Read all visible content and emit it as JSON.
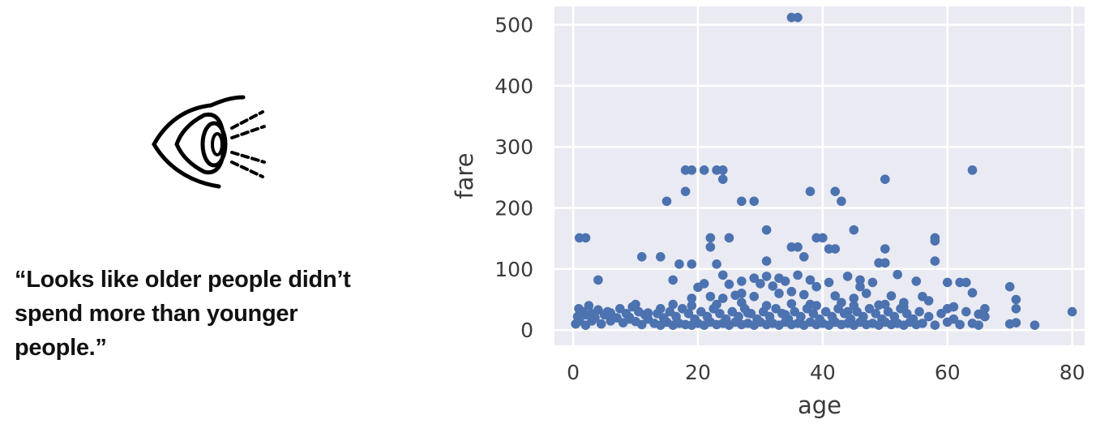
{
  "quote": {
    "lines": [
      "“Looks like older people didn’t",
      "spend more than younger",
      "people.”"
    ]
  },
  "icon": {
    "name": "eye-icon"
  },
  "chart_data": {
    "type": "scatter",
    "xlabel": "age",
    "ylabel": "fare",
    "xlim": [
      -3,
      82
    ],
    "ylim": [
      -25,
      530
    ],
    "xticks": [
      0,
      20,
      40,
      60,
      80
    ],
    "yticks": [
      0,
      100,
      200,
      300,
      400,
      500
    ],
    "grid": true,
    "legend": "none",
    "colors": {
      "marker": "#4c72b0",
      "plot_background": "#eaeaf2",
      "grid": "#ffffff"
    },
    "series": [
      {
        "points": [
          [
            35,
            512
          ],
          [
            36,
            512
          ],
          [
            18,
            262
          ],
          [
            19,
            262
          ],
          [
            21,
            262
          ],
          [
            23,
            262
          ],
          [
            24,
            262
          ],
          [
            64,
            262
          ],
          [
            24,
            247
          ],
          [
            50,
            247
          ],
          [
            18,
            227
          ],
          [
            38,
            227
          ],
          [
            42,
            227
          ],
          [
            15,
            211
          ],
          [
            27,
            211
          ],
          [
            29,
            211
          ],
          [
            43,
            211
          ],
          [
            31,
            164
          ],
          [
            45,
            164
          ],
          [
            1,
            151
          ],
          [
            2,
            151
          ],
          [
            22,
            151
          ],
          [
            25,
            151
          ],
          [
            39,
            151
          ],
          [
            40,
            151
          ],
          [
            58,
            151
          ],
          [
            22,
            136
          ],
          [
            35,
            136
          ],
          [
            36,
            136
          ],
          [
            41,
            133
          ],
          [
            42,
            133
          ],
          [
            50,
            133
          ],
          [
            58,
            146
          ],
          [
            11,
            120
          ],
          [
            14,
            120
          ],
          [
            37,
            120
          ],
          [
            31,
            113
          ],
          [
            49,
            110
          ],
          [
            50,
            110
          ],
          [
            58,
            113
          ],
          [
            17,
            108
          ],
          [
            19,
            108
          ],
          [
            23,
            108
          ],
          [
            52,
            91
          ],
          [
            60,
            78
          ],
          [
            62,
            78
          ],
          [
            63,
            78
          ],
          [
            4,
            82
          ],
          [
            16,
            82
          ],
          [
            24,
            90
          ],
          [
            27,
            80
          ],
          [
            29,
            85
          ],
          [
            31,
            88
          ],
          [
            33,
            85
          ],
          [
            36,
            90
          ],
          [
            38,
            82
          ],
          [
            44,
            88
          ],
          [
            46,
            82
          ],
          [
            48,
            78
          ],
          [
            55,
            80
          ],
          [
            64,
            61
          ],
          [
            70,
            71
          ],
          [
            71,
            50
          ],
          [
            71,
            35
          ],
          [
            20,
            70
          ],
          [
            21,
            76
          ],
          [
            25,
            75
          ],
          [
            30,
            76
          ],
          [
            32,
            72
          ],
          [
            34,
            80
          ],
          [
            39,
            71
          ],
          [
            41,
            78
          ],
          [
            46,
            71
          ],
          [
            19,
            52
          ],
          [
            22,
            55
          ],
          [
            26,
            57
          ],
          [
            29,
            55
          ],
          [
            33,
            60
          ],
          [
            37,
            58
          ],
          [
            42,
            56
          ],
          [
            47,
            60
          ],
          [
            51,
            56
          ],
          [
            56,
            55
          ],
          [
            27,
            60
          ],
          [
            35,
            63
          ],
          [
            45,
            52
          ],
          [
            53,
            45
          ],
          [
            57,
            48
          ],
          [
            61,
            38
          ],
          [
            66,
            35
          ],
          [
            65,
            26
          ],
          [
            80,
            30
          ],
          [
            0.4,
            10
          ],
          [
            0.7,
            22
          ],
          [
            0.9,
            35
          ],
          [
            1,
            15
          ],
          [
            1.5,
            30
          ],
          [
            2,
            8
          ],
          [
            2,
            25
          ],
          [
            2.5,
            40
          ],
          [
            3,
            15
          ],
          [
            3,
            27
          ],
          [
            3.5,
            20
          ],
          [
            4,
            33
          ],
          [
            4.5,
            10
          ],
          [
            5,
            25
          ],
          [
            5.5,
            30
          ],
          [
            6,
            15
          ],
          [
            6,
            28
          ],
          [
            7,
            20
          ],
          [
            7.5,
            35
          ],
          [
            8,
            12
          ],
          [
            8.5,
            27
          ],
          [
            9,
            21
          ],
          [
            9.5,
            38
          ],
          [
            10,
            14
          ],
          [
            10.5,
            30
          ],
          [
            11,
            9
          ],
          [
            11.5,
            25
          ],
          [
            12,
            18
          ],
          [
            13,
            11
          ],
          [
            13.5,
            27
          ],
          [
            14,
            8
          ],
          [
            14.5,
            20
          ],
          [
            15,
            13
          ],
          [
            15.5,
            30
          ],
          [
            16,
            8
          ],
          [
            16.5,
            22
          ],
          [
            17,
            11
          ],
          [
            17.5,
            35
          ],
          [
            18,
            9
          ],
          [
            18.5,
            27
          ],
          [
            19,
            8
          ],
          [
            19.5,
            18
          ],
          [
            20,
            11
          ],
          [
            20.5,
            30
          ],
          [
            21,
            8
          ],
          [
            21.5,
            22
          ],
          [
            22,
            13
          ],
          [
            22.5,
            35
          ],
          [
            23,
            9
          ],
          [
            23.5,
            27
          ],
          [
            24,
            11
          ],
          [
            24.5,
            18
          ],
          [
            25,
            8
          ],
          [
            25.5,
            30
          ],
          [
            26,
            13
          ],
          [
            26.5,
            22
          ],
          [
            27,
            9
          ],
          [
            27.5,
            35
          ],
          [
            28,
            11
          ],
          [
            28.5,
            27
          ],
          [
            29,
            8
          ],
          [
            29.5,
            18
          ],
          [
            30,
            13
          ],
          [
            30.5,
            30
          ],
          [
            31,
            9
          ],
          [
            31.5,
            22
          ],
          [
            32,
            11
          ],
          [
            32.5,
            35
          ],
          [
            33,
            8
          ],
          [
            33.5,
            27
          ],
          [
            34,
            13
          ],
          [
            34.5,
            18
          ],
          [
            35,
            9
          ],
          [
            35.5,
            30
          ],
          [
            36,
            11
          ],
          [
            36.5,
            22
          ],
          [
            37,
            8
          ],
          [
            37.5,
            35
          ],
          [
            38,
            13
          ],
          [
            38.5,
            27
          ],
          [
            39,
            9
          ],
          [
            39.5,
            18
          ],
          [
            40,
            11
          ],
          [
            40.5,
            30
          ],
          [
            41,
            8
          ],
          [
            41.5,
            22
          ],
          [
            42,
            13
          ],
          [
            42.5,
            35
          ],
          [
            43,
            9
          ],
          [
            43.5,
            27
          ],
          [
            44,
            11
          ],
          [
            44.5,
            18
          ],
          [
            45,
            8
          ],
          [
            45.5,
            30
          ],
          [
            46,
            13
          ],
          [
            46.5,
            22
          ],
          [
            47,
            9
          ],
          [
            47.5,
            35
          ],
          [
            48,
            11
          ],
          [
            48.5,
            27
          ],
          [
            49,
            8
          ],
          [
            49.5,
            18
          ],
          [
            50,
            13
          ],
          [
            50.5,
            30
          ],
          [
            51,
            9
          ],
          [
            51.5,
            22
          ],
          [
            52,
            11
          ],
          [
            52.5,
            35
          ],
          [
            53,
            8
          ],
          [
            53.5,
            27
          ],
          [
            54,
            13
          ],
          [
            54.5,
            18
          ],
          [
            55,
            9
          ],
          [
            55.5,
            30
          ],
          [
            56,
            11
          ],
          [
            57,
            22
          ],
          [
            58,
            8
          ],
          [
            59,
            27
          ],
          [
            60,
            13
          ],
          [
            61,
            18
          ],
          [
            62,
            9
          ],
          [
            63,
            30
          ],
          [
            64,
            11
          ],
          [
            65,
            8
          ],
          [
            66,
            22
          ],
          [
            70,
            10
          ],
          [
            74,
            8
          ],
          [
            71,
            12
          ],
          [
            60,
            35
          ],
          [
            45,
            40
          ],
          [
            19,
            40
          ],
          [
            23,
            42
          ],
          [
            27,
            45
          ],
          [
            31,
            40
          ],
          [
            35,
            43
          ],
          [
            39,
            40
          ],
          [
            43,
            45
          ],
          [
            49,
            41
          ],
          [
            53,
            38
          ],
          [
            24,
            52
          ],
          [
            28,
            28
          ],
          [
            34,
            25
          ],
          [
            38,
            42
          ],
          [
            44,
            30
          ],
          [
            50,
            42
          ],
          [
            16,
            42
          ],
          [
            14,
            35
          ],
          [
            12,
            28
          ],
          [
            10,
            42
          ],
          [
            9,
            18
          ]
        ]
      }
    ]
  }
}
